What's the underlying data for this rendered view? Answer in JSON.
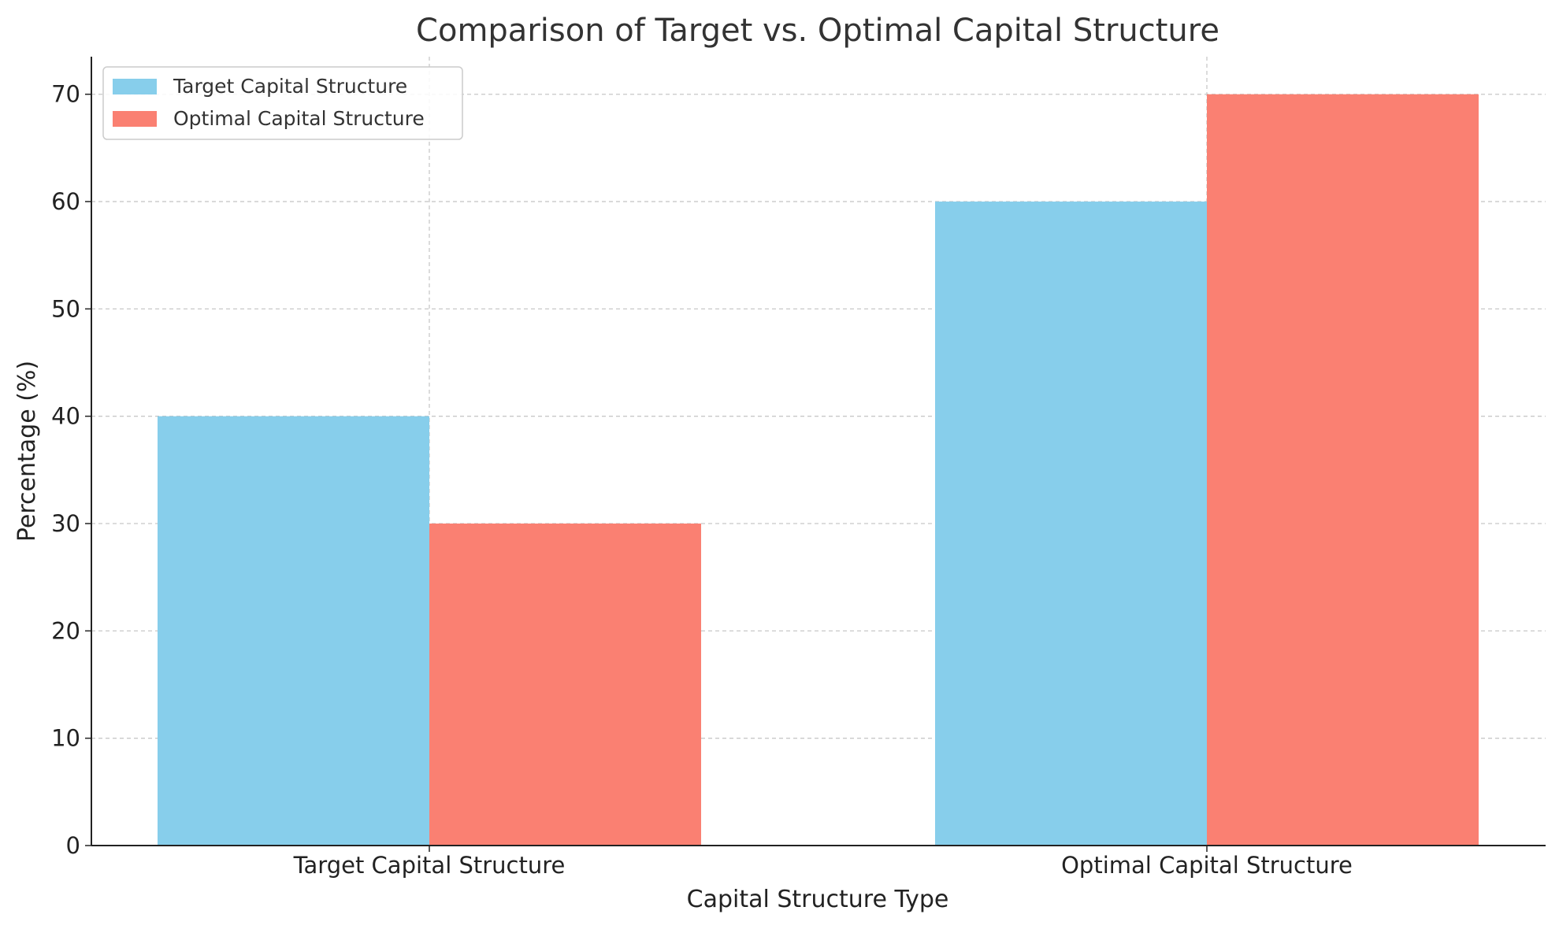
{
  "chart_data": {
    "type": "bar",
    "title": "Comparison of Target vs. Optimal Capital Structure",
    "xlabel": "Capital Structure Type",
    "ylabel": "Percentage (%)",
    "categories": [
      "Target Capital Structure",
      "Optimal Capital Structure"
    ],
    "series": [
      {
        "name": "Target Capital Structure",
        "values": [
          40,
          60
        ],
        "color": "#87CEEB"
      },
      {
        "name": "Optimal Capital Structure",
        "values": [
          30,
          70
        ],
        "color": "#FA8072"
      }
    ],
    "ylim": [
      0,
      73.5
    ],
    "yticks": [
      0,
      10,
      20,
      30,
      40,
      50,
      60,
      70
    ],
    "grid": true,
    "legend_position": "top-left"
  }
}
